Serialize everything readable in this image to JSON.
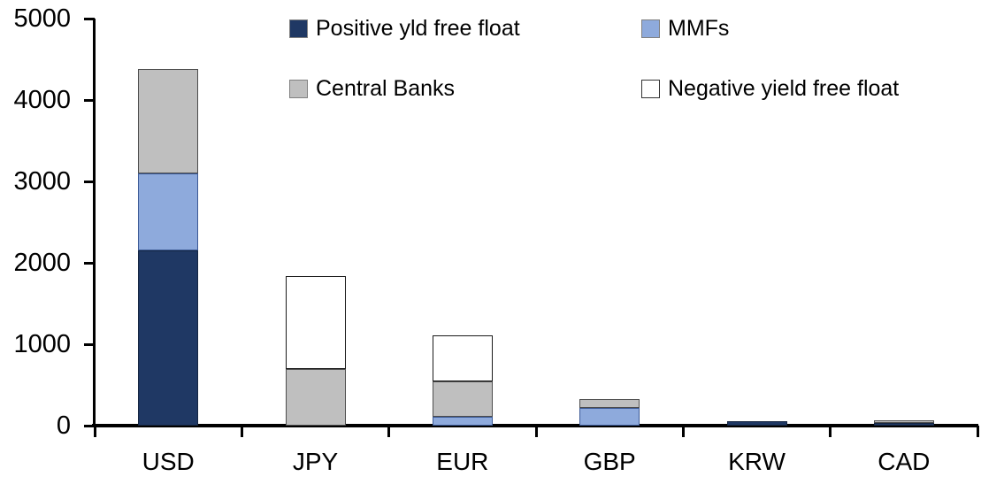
{
  "chart_data": {
    "type": "bar",
    "stacked": true,
    "title": "",
    "xlabel": "",
    "ylabel": "",
    "categories": [
      "USD",
      "JPY",
      "EUR",
      "GBP",
      "KRW",
      "CAD"
    ],
    "series": [
      {
        "name": "Positive yld free float",
        "color": "#1F3864",
        "border_color": "#152642",
        "values": [
          2150,
          0,
          0,
          0,
          50,
          30
        ]
      },
      {
        "name": "MMFs",
        "color": "#8EAADC",
        "border_color": "#3C5A96",
        "values": [
          950,
          0,
          110,
          220,
          0,
          0
        ]
      },
      {
        "name": "Central Banks",
        "color": "#BFBFBF",
        "border_color": "#4D4D4D",
        "values": [
          1280,
          700,
          430,
          110,
          0,
          30
        ]
      },
      {
        "name": "Negative yield free float",
        "color": "#FFFFFF",
        "border_color": "#1A1A1A",
        "values": [
          0,
          1140,
          570,
          0,
          0,
          0
        ]
      }
    ],
    "ylim": [
      0,
      5000
    ],
    "yticks": [
      0,
      1000,
      2000,
      3000,
      4000,
      5000
    ],
    "grid": false,
    "legend_position": "top"
  },
  "colors": {
    "background": "#FFFFFF",
    "axis": "#000000",
    "text": "#000000"
  }
}
